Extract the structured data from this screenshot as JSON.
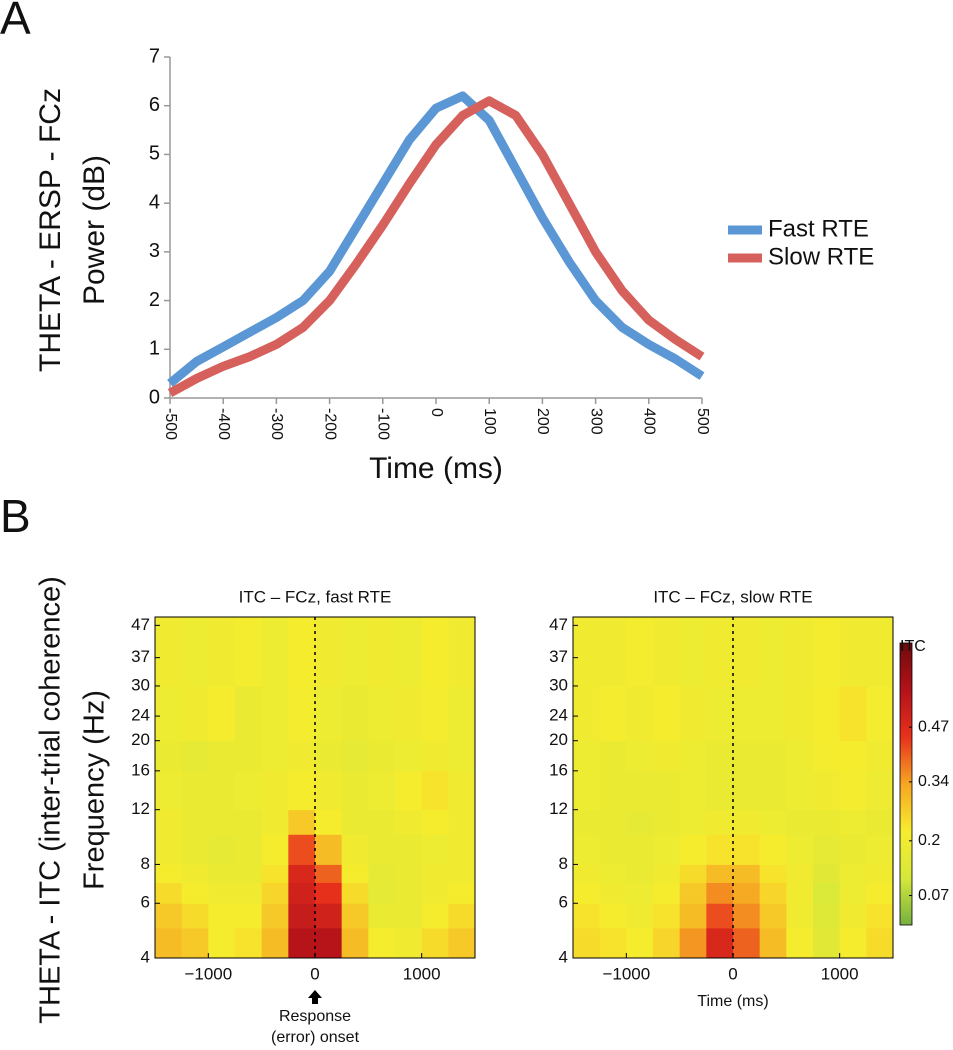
{
  "chart_data": [
    {
      "type": "line",
      "panel": "A",
      "ylabel": [
        "THETA - ERSP - FCz",
        "Power (dB)"
      ],
      "xlabel": "Time (ms)",
      "x": [
        -500,
        -450,
        -400,
        -350,
        -300,
        -250,
        -200,
        -150,
        -100,
        -50,
        0,
        50,
        100,
        150,
        200,
        250,
        300,
        350,
        400,
        450,
        500
      ],
      "series": [
        {
          "name": "Fast RTE",
          "color": "#5a97d4",
          "values": [
            0.3,
            0.75,
            1.05,
            1.35,
            1.65,
            2.0,
            2.6,
            3.5,
            4.4,
            5.3,
            5.95,
            6.2,
            5.7,
            4.7,
            3.7,
            2.8,
            2.0,
            1.45,
            1.1,
            0.8,
            0.45
          ]
        },
        {
          "name": "Slow RTE",
          "color": "#d6605b",
          "values": [
            0.1,
            0.4,
            0.65,
            0.85,
            1.1,
            1.45,
            2.0,
            2.75,
            3.55,
            4.4,
            5.2,
            5.8,
            6.1,
            5.8,
            5.0,
            4.0,
            3.0,
            2.2,
            1.6,
            1.2,
            0.85
          ]
        }
      ],
      "xlim": [
        -500,
        500
      ],
      "xticks": [
        -500,
        -400,
        -300,
        -200,
        -100,
        0,
        100,
        200,
        300,
        400,
        500
      ],
      "ylim": [
        0,
        7
      ],
      "yticks": [
        0,
        1,
        2,
        3,
        4,
        5,
        6,
        7
      ]
    },
    {
      "type": "heatmap",
      "panel": "B",
      "ylabel": [
        "THETA - ITC (inter-trial coherence)",
        "Frequency (Hz)"
      ],
      "title": "ITC – FCz, fast RTE",
      "annotation": [
        "Response",
        "(error) onset"
      ],
      "vline": 0,
      "log_y": true,
      "x_bins": [
        -1500,
        -1250,
        -1000,
        -750,
        -500,
        -250,
        0,
        250,
        500,
        750,
        1000,
        1250,
        1500
      ],
      "y_bins": [
        4,
        5,
        6,
        7,
        8,
        10,
        12,
        16,
        20,
        30,
        50
      ],
      "values": [
        [
          0.3,
          0.28,
          0.22,
          0.24,
          0.3,
          0.55,
          0.55,
          0.3,
          0.22,
          0.2,
          0.25,
          0.28
        ],
        [
          0.28,
          0.25,
          0.22,
          0.22,
          0.28,
          0.52,
          0.5,
          0.28,
          0.18,
          0.18,
          0.22,
          0.25
        ],
        [
          0.25,
          0.22,
          0.2,
          0.2,
          0.26,
          0.5,
          0.45,
          0.25,
          0.16,
          0.18,
          0.2,
          0.22
        ],
        [
          0.22,
          0.2,
          0.18,
          0.18,
          0.24,
          0.48,
          0.4,
          0.22,
          0.17,
          0.18,
          0.2,
          0.2
        ],
        [
          0.2,
          0.18,
          0.17,
          0.18,
          0.22,
          0.42,
          0.3,
          0.2,
          0.18,
          0.18,
          0.19,
          0.2
        ],
        [
          0.2,
          0.18,
          0.18,
          0.18,
          0.2,
          0.28,
          0.22,
          0.18,
          0.18,
          0.2,
          0.22,
          0.2
        ],
        [
          0.19,
          0.18,
          0.18,
          0.19,
          0.2,
          0.22,
          0.2,
          0.18,
          0.19,
          0.22,
          0.24,
          0.2
        ],
        [
          0.18,
          0.17,
          0.18,
          0.18,
          0.19,
          0.2,
          0.18,
          0.17,
          0.18,
          0.19,
          0.2,
          0.19
        ],
        [
          0.19,
          0.2,
          0.22,
          0.18,
          0.19,
          0.21,
          0.19,
          0.18,
          0.19,
          0.2,
          0.21,
          0.19
        ],
        [
          0.2,
          0.19,
          0.2,
          0.21,
          0.19,
          0.22,
          0.2,
          0.19,
          0.2,
          0.19,
          0.22,
          0.2
        ]
      ],
      "clim": [
        0,
        0.67
      ],
      "colormap": [
        "#76b041",
        "#d6e83a",
        "#f7ec2e",
        "#f6a623",
        "#e8311c",
        "#b3121a",
        "#6e0b0b"
      ],
      "xlim": [
        -1500,
        1500
      ],
      "xticks": [
        {
          "value": -1000,
          "label": "−1000"
        },
        0,
        1000
      ],
      "ylim": [
        4,
        50
      ],
      "yticks": [
        4,
        6,
        8,
        12,
        16,
        20,
        24,
        30,
        37,
        47
      ]
    },
    {
      "type": "heatmap",
      "title": "ITC – FCz, slow RTE",
      "xlabel": "Time (ms)",
      "vline": 0,
      "log_y": true,
      "x_bins": [
        -1500,
        -1250,
        -1000,
        -750,
        -500,
        -250,
        0,
        250,
        500,
        750,
        1000,
        1250,
        1500
      ],
      "y_bins": [
        4,
        5,
        6,
        7,
        8,
        10,
        12,
        16,
        20,
        30,
        50
      ],
      "values": [
        [
          0.25,
          0.24,
          0.22,
          0.26,
          0.35,
          0.48,
          0.4,
          0.3,
          0.22,
          0.15,
          0.22,
          0.25
        ],
        [
          0.24,
          0.22,
          0.2,
          0.24,
          0.3,
          0.42,
          0.36,
          0.28,
          0.2,
          0.14,
          0.2,
          0.24
        ],
        [
          0.22,
          0.2,
          0.19,
          0.22,
          0.28,
          0.36,
          0.33,
          0.26,
          0.2,
          0.13,
          0.19,
          0.22
        ],
        [
          0.2,
          0.19,
          0.18,
          0.2,
          0.25,
          0.3,
          0.3,
          0.24,
          0.2,
          0.15,
          0.19,
          0.2
        ],
        [
          0.19,
          0.18,
          0.18,
          0.19,
          0.22,
          0.24,
          0.24,
          0.22,
          0.19,
          0.17,
          0.18,
          0.19
        ],
        [
          0.18,
          0.18,
          0.17,
          0.18,
          0.19,
          0.2,
          0.2,
          0.19,
          0.18,
          0.18,
          0.19,
          0.18
        ],
        [
          0.19,
          0.18,
          0.18,
          0.18,
          0.19,
          0.18,
          0.18,
          0.18,
          0.19,
          0.2,
          0.21,
          0.19
        ],
        [
          0.19,
          0.18,
          0.19,
          0.2,
          0.19,
          0.18,
          0.18,
          0.18,
          0.19,
          0.21,
          0.22,
          0.2
        ],
        [
          0.2,
          0.21,
          0.2,
          0.22,
          0.2,
          0.19,
          0.19,
          0.19,
          0.2,
          0.22,
          0.24,
          0.21
        ],
        [
          0.2,
          0.2,
          0.21,
          0.2,
          0.19,
          0.2,
          0.2,
          0.19,
          0.2,
          0.21,
          0.2,
          0.2
        ]
      ],
      "clim": [
        0,
        0.67
      ],
      "colormap": [
        "#76b041",
        "#d6e83a",
        "#f7ec2e",
        "#f6a623",
        "#e8311c",
        "#b3121a",
        "#6e0b0b"
      ],
      "colorbar": {
        "label": "ITC",
        "ticks": [
          0.07,
          0.2,
          0.34,
          0.47
        ]
      },
      "xlim": [
        -1500,
        1500
      ],
      "xticks": [
        {
          "value": -1000,
          "label": "−1000"
        },
        0,
        1000
      ],
      "ylim": [
        4,
        50
      ],
      "yticks": [
        4,
        6,
        8,
        12,
        16,
        20,
        24,
        30,
        37,
        47
      ]
    }
  ]
}
